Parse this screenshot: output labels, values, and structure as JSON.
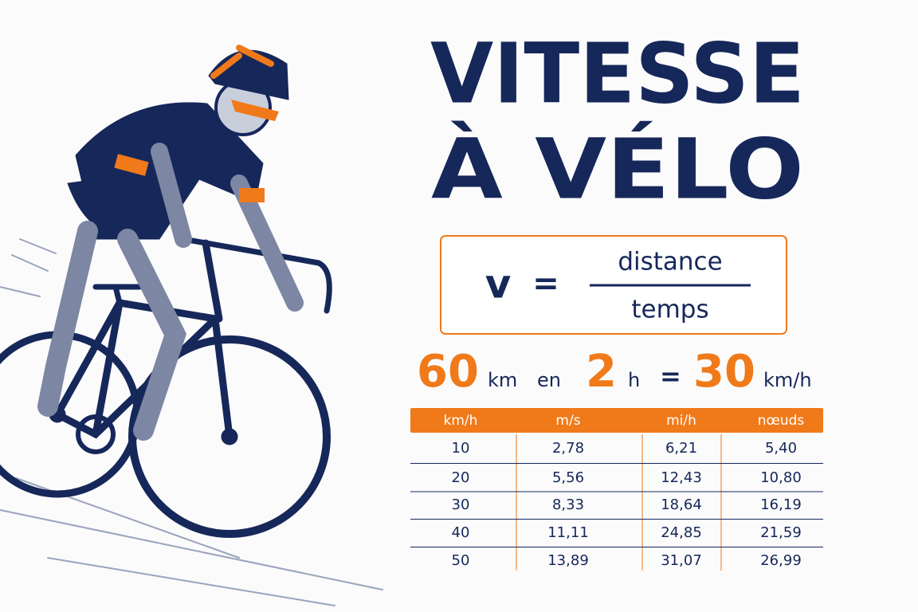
{
  "title": {
    "line1": "VITESSE",
    "line2": "À VÉLO"
  },
  "formula": {
    "lhs": "v",
    "equals": "=",
    "numerator": "distance",
    "denominator": "temps"
  },
  "example": {
    "distance": "60",
    "distance_unit": "km",
    "connector": "en",
    "time": "2",
    "time_unit": "h",
    "equals": "=",
    "speed": "30",
    "speed_unit": "km/h"
  },
  "table": {
    "headers": [
      "km/h",
      "m/s",
      "mi/h",
      "nœuds"
    ],
    "rows": [
      [
        "10",
        "2,78",
        "6,21",
        "5,40"
      ],
      [
        "20",
        "5,56",
        "12,43",
        "10,80"
      ],
      [
        "30",
        "8,33",
        "18,64",
        "16,19"
      ],
      [
        "40",
        "11,11",
        "24,85",
        "21,59"
      ],
      [
        "50",
        "13,89",
        "31,07",
        "26,99"
      ]
    ]
  }
}
